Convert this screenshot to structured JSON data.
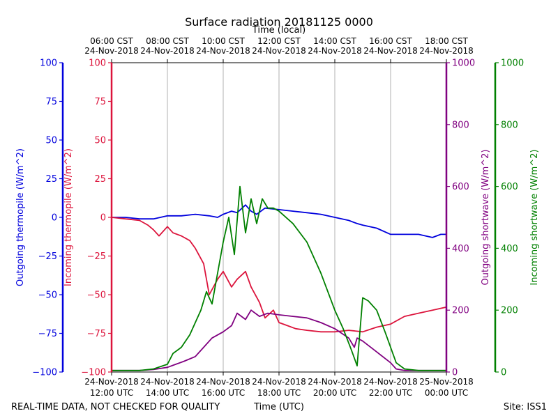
{
  "chart_data": {
    "type": "line",
    "title": "Surface radiation 20181125 0000",
    "top_axis_title": "Time (local)",
    "bottom_axis_title": "Time (UTC)",
    "footer_left": "REAL-TIME DATA, NOT CHECKED FOR QUALITY",
    "footer_right": "Site: ISS1",
    "x_range_utc_hours": [
      12,
      24
    ],
    "x_grid": [
      14,
      16,
      18,
      20,
      22
    ],
    "bottom_ticks": [
      {
        "hour": 12,
        "line1": "24-Nov-2018",
        "line2": "12:00 UTC"
      },
      {
        "hour": 14,
        "line1": "24-Nov-2018",
        "line2": "14:00 UTC"
      },
      {
        "hour": 16,
        "line1": "24-Nov-2018",
        "line2": "16:00 UTC"
      },
      {
        "hour": 18,
        "line1": "24-Nov-2018",
        "line2": "18:00 UTC"
      },
      {
        "hour": 20,
        "line1": "24-Nov-2018",
        "line2": "20:00 UTC"
      },
      {
        "hour": 22,
        "line1": "24-Nov-2018",
        "line2": "22:00 UTC"
      },
      {
        "hour": 24,
        "line1": "25-Nov-2018",
        "line2": "00:00 UTC"
      }
    ],
    "top_ticks": [
      {
        "hour": 12,
        "line1": "06:00 CST",
        "line2": "24-Nov-2018"
      },
      {
        "hour": 14,
        "line1": "08:00 CST",
        "line2": "24-Nov-2018"
      },
      {
        "hour": 16,
        "line1": "10:00 CST",
        "line2": "24-Nov-2018"
      },
      {
        "hour": 18,
        "line1": "12:00 CST",
        "line2": "24-Nov-2018"
      },
      {
        "hour": 20,
        "line1": "14:00 CST",
        "line2": "24-Nov-2018"
      },
      {
        "hour": 22,
        "line1": "16:00 CST",
        "line2": "24-Nov-2018"
      },
      {
        "hour": 24,
        "line1": "18:00 CST",
        "line2": "24-Nov-2018"
      }
    ],
    "axes": [
      {
        "id": "outgoing_thermopile",
        "label": "Outgoing thermopile (W/m^2)",
        "color": "#0000dd",
        "side": "left-outer",
        "ylim": [
          -100,
          100
        ],
        "ticks": [
          -100,
          -75,
          -50,
          -25,
          0,
          25,
          50,
          75,
          100
        ]
      },
      {
        "id": "incoming_thermopile",
        "label": "Incoming thermopile (W/m^2)",
        "color": "#dc143c",
        "side": "left-inner",
        "ylim": [
          -100,
          100
        ],
        "ticks": [
          -100,
          -75,
          -50,
          -25,
          0,
          25,
          50,
          75,
          100
        ]
      },
      {
        "id": "outgoing_shortwave",
        "label": "Outgoing shortwave (W/m^2)",
        "color": "#800080",
        "side": "right-inner",
        "ylim": [
          0,
          1000
        ],
        "ticks": [
          0,
          200,
          400,
          600,
          800,
          1000
        ]
      },
      {
        "id": "incoming_shortwave",
        "label": "Incoming shortwave (W/m^2)",
        "color": "#008000",
        "side": "right-outer",
        "ylim": [
          0,
          1000
        ],
        "ticks": [
          0,
          200,
          400,
          600,
          800,
          1000
        ]
      }
    ],
    "series": [
      {
        "name": "Outgoing thermopile",
        "axis": "outgoing_thermopile",
        "color": "#0000dd",
        "x": [
          12.0,
          12.5,
          13.0,
          13.5,
          14.0,
          14.5,
          15.0,
          15.5,
          15.8,
          16.0,
          16.3,
          16.5,
          16.8,
          17.0,
          17.2,
          17.5,
          18.0,
          18.5,
          19.0,
          19.5,
          20.0,
          20.5,
          20.8,
          21.0,
          21.5,
          22.0,
          22.5,
          23.0,
          23.5,
          23.8,
          24.0
        ],
        "y": [
          0,
          0,
          -1,
          -1,
          1,
          1,
          2,
          1,
          0,
          2,
          4,
          3,
          8,
          4,
          2,
          6,
          5,
          4,
          3,
          2,
          0,
          -2,
          -4,
          -5,
          -7,
          -11,
          -11,
          -11,
          -13,
          -11,
          -11
        ]
      },
      {
        "name": "Incoming thermopile",
        "axis": "incoming_thermopile",
        "color": "#dc143c",
        "x": [
          12.0,
          12.5,
          13.0,
          13.3,
          13.5,
          13.7,
          14.0,
          14.2,
          14.5,
          14.8,
          15.0,
          15.3,
          15.5,
          15.8,
          16.0,
          16.3,
          16.5,
          16.8,
          17.0,
          17.3,
          17.5,
          17.8,
          18.0,
          18.3,
          18.6,
          19.0,
          19.5,
          20.0,
          20.5,
          21.0,
          21.5,
          22.0,
          22.5,
          23.0,
          23.5,
          24.0
        ],
        "y": [
          0,
          -1,
          -2,
          -5,
          -8,
          -12,
          -6,
          -10,
          -12,
          -15,
          -20,
          -30,
          -50,
          -40,
          -35,
          -45,
          -40,
          -35,
          -45,
          -55,
          -65,
          -60,
          -68,
          -70,
          -72,
          -73,
          -74,
          -74,
          -73,
          -74,
          -71,
          -69,
          -64,
          -62,
          -60,
          -58
        ]
      },
      {
        "name": "Outgoing shortwave",
        "axis": "outgoing_shortwave",
        "color": "#800080",
        "x": [
          12.0,
          12.5,
          13.0,
          13.5,
          14.0,
          14.3,
          14.6,
          15.0,
          15.3,
          15.6,
          16.0,
          16.3,
          16.5,
          16.8,
          17.0,
          17.3,
          17.6,
          18.0,
          18.5,
          19.0,
          19.5,
          20.0,
          20.5,
          20.7,
          20.8,
          21.0,
          21.5,
          22.0,
          22.2,
          22.5,
          23.0,
          23.5,
          24.0
        ],
        "y": [
          5,
          5,
          5,
          8,
          15,
          25,
          35,
          50,
          80,
          110,
          130,
          150,
          190,
          170,
          200,
          180,
          190,
          185,
          180,
          175,
          160,
          140,
          110,
          80,
          110,
          100,
          65,
          30,
          10,
          5,
          5,
          5,
          5
        ]
      },
      {
        "name": "Incoming shortwave",
        "axis": "incoming_shortwave",
        "color": "#008000",
        "x": [
          12.0,
          12.5,
          13.0,
          13.5,
          14.0,
          14.2,
          14.5,
          14.8,
          15.0,
          15.2,
          15.4,
          15.6,
          15.8,
          16.0,
          16.2,
          16.4,
          16.6,
          16.8,
          17.0,
          17.2,
          17.4,
          17.6,
          17.8,
          18.0,
          18.5,
          19.0,
          19.5,
          20.0,
          20.3,
          20.6,
          20.8,
          21.0,
          21.2,
          21.5,
          21.8,
          22.0,
          22.2,
          22.5,
          23.0,
          23.5,
          24.0
        ],
        "y": [
          5,
          5,
          5,
          10,
          25,
          60,
          80,
          120,
          160,
          200,
          260,
          220,
          320,
          420,
          500,
          380,
          600,
          450,
          560,
          480,
          560,
          530,
          530,
          520,
          480,
          420,
          320,
          200,
          140,
          70,
          20,
          240,
          230,
          200,
          130,
          80,
          30,
          10,
          5,
          5,
          5
        ]
      }
    ]
  }
}
